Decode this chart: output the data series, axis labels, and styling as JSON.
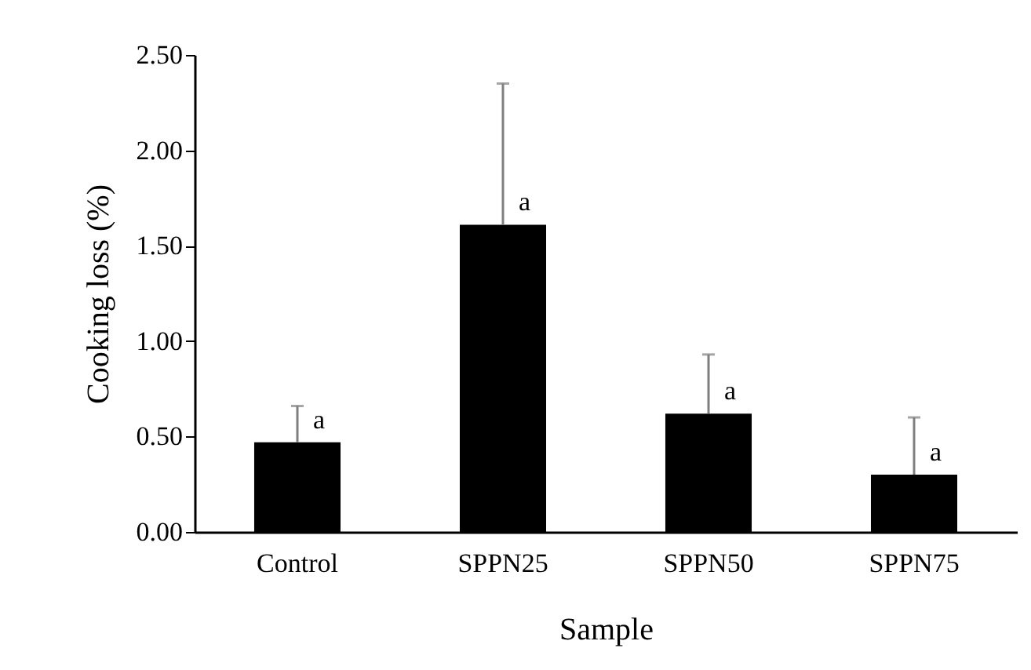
{
  "chart_data": {
    "type": "bar",
    "xlabel": "Sample",
    "ylabel": "Cooking loss (%)",
    "categories": [
      "Control",
      "SPPN25",
      "SPPN50",
      "SPPN75"
    ],
    "values": [
      0.47,
      1.61,
      0.62,
      0.3
    ],
    "errors": [
      [
        0.47,
        0.66
      ],
      [
        1.61,
        2.35
      ],
      [
        0.62,
        0.93
      ],
      [
        0.3,
        0.6
      ]
    ],
    "color": "#000000",
    "ylim": [
      0,
      2.5
    ],
    "yticks": [
      {
        "value": 0,
        "label": "0.00"
      },
      {
        "value": 0.5,
        "label": "0.50"
      },
      {
        "value": 1,
        "label": "1.00"
      },
      {
        "value": 1.5,
        "label": "1.50"
      },
      {
        "value": 2,
        "label": "2.00"
      },
      {
        "value": 2.5,
        "label": "2.50"
      }
    ],
    "grid": false,
    "annotations": [
      {
        "text": "a",
        "x": "Control",
        "y": 0.47
      },
      {
        "text": "a",
        "x": "SPPN25",
        "y": 1.61
      },
      {
        "text": "a",
        "x": "SPPN50",
        "y": 0.62
      },
      {
        "text": "a",
        "x": "SPPN75",
        "y": 0.3
      }
    ]
  }
}
